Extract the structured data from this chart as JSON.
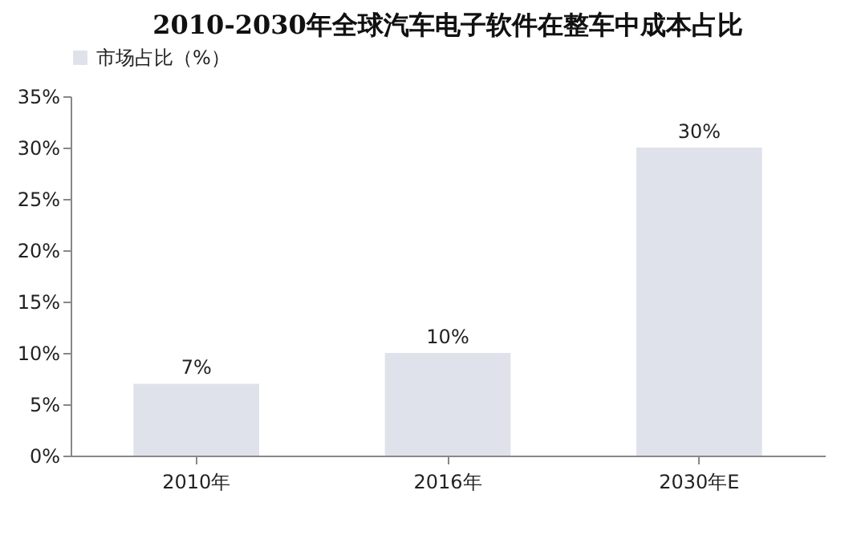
{
  "chart_data": {
    "type": "bar",
    "title": "2010-2030年全球汽车电子软件在整车中成本占比",
    "categories": [
      "2010年",
      "2016年",
      "2030年E"
    ],
    "series": [
      {
        "name": "市场占比（%）",
        "color": "#dfe2ea",
        "values": [
          7,
          10,
          30
        ],
        "value_labels": [
          "7%",
          "10%",
          "30%"
        ]
      }
    ],
    "ylim": [
      0,
      35
    ],
    "yticks": [
      {
        "value": 0,
        "label": "0%"
      },
      {
        "value": 5,
        "label": "5%"
      },
      {
        "value": 10,
        "label": "10%"
      },
      {
        "value": 15,
        "label": "15%"
      },
      {
        "value": 20,
        "label": "20%"
      },
      {
        "value": 25,
        "label": "25%"
      },
      {
        "value": 30,
        "label": "30%"
      },
      {
        "value": 35,
        "label": "35%"
      }
    ],
    "legend": "top"
  }
}
